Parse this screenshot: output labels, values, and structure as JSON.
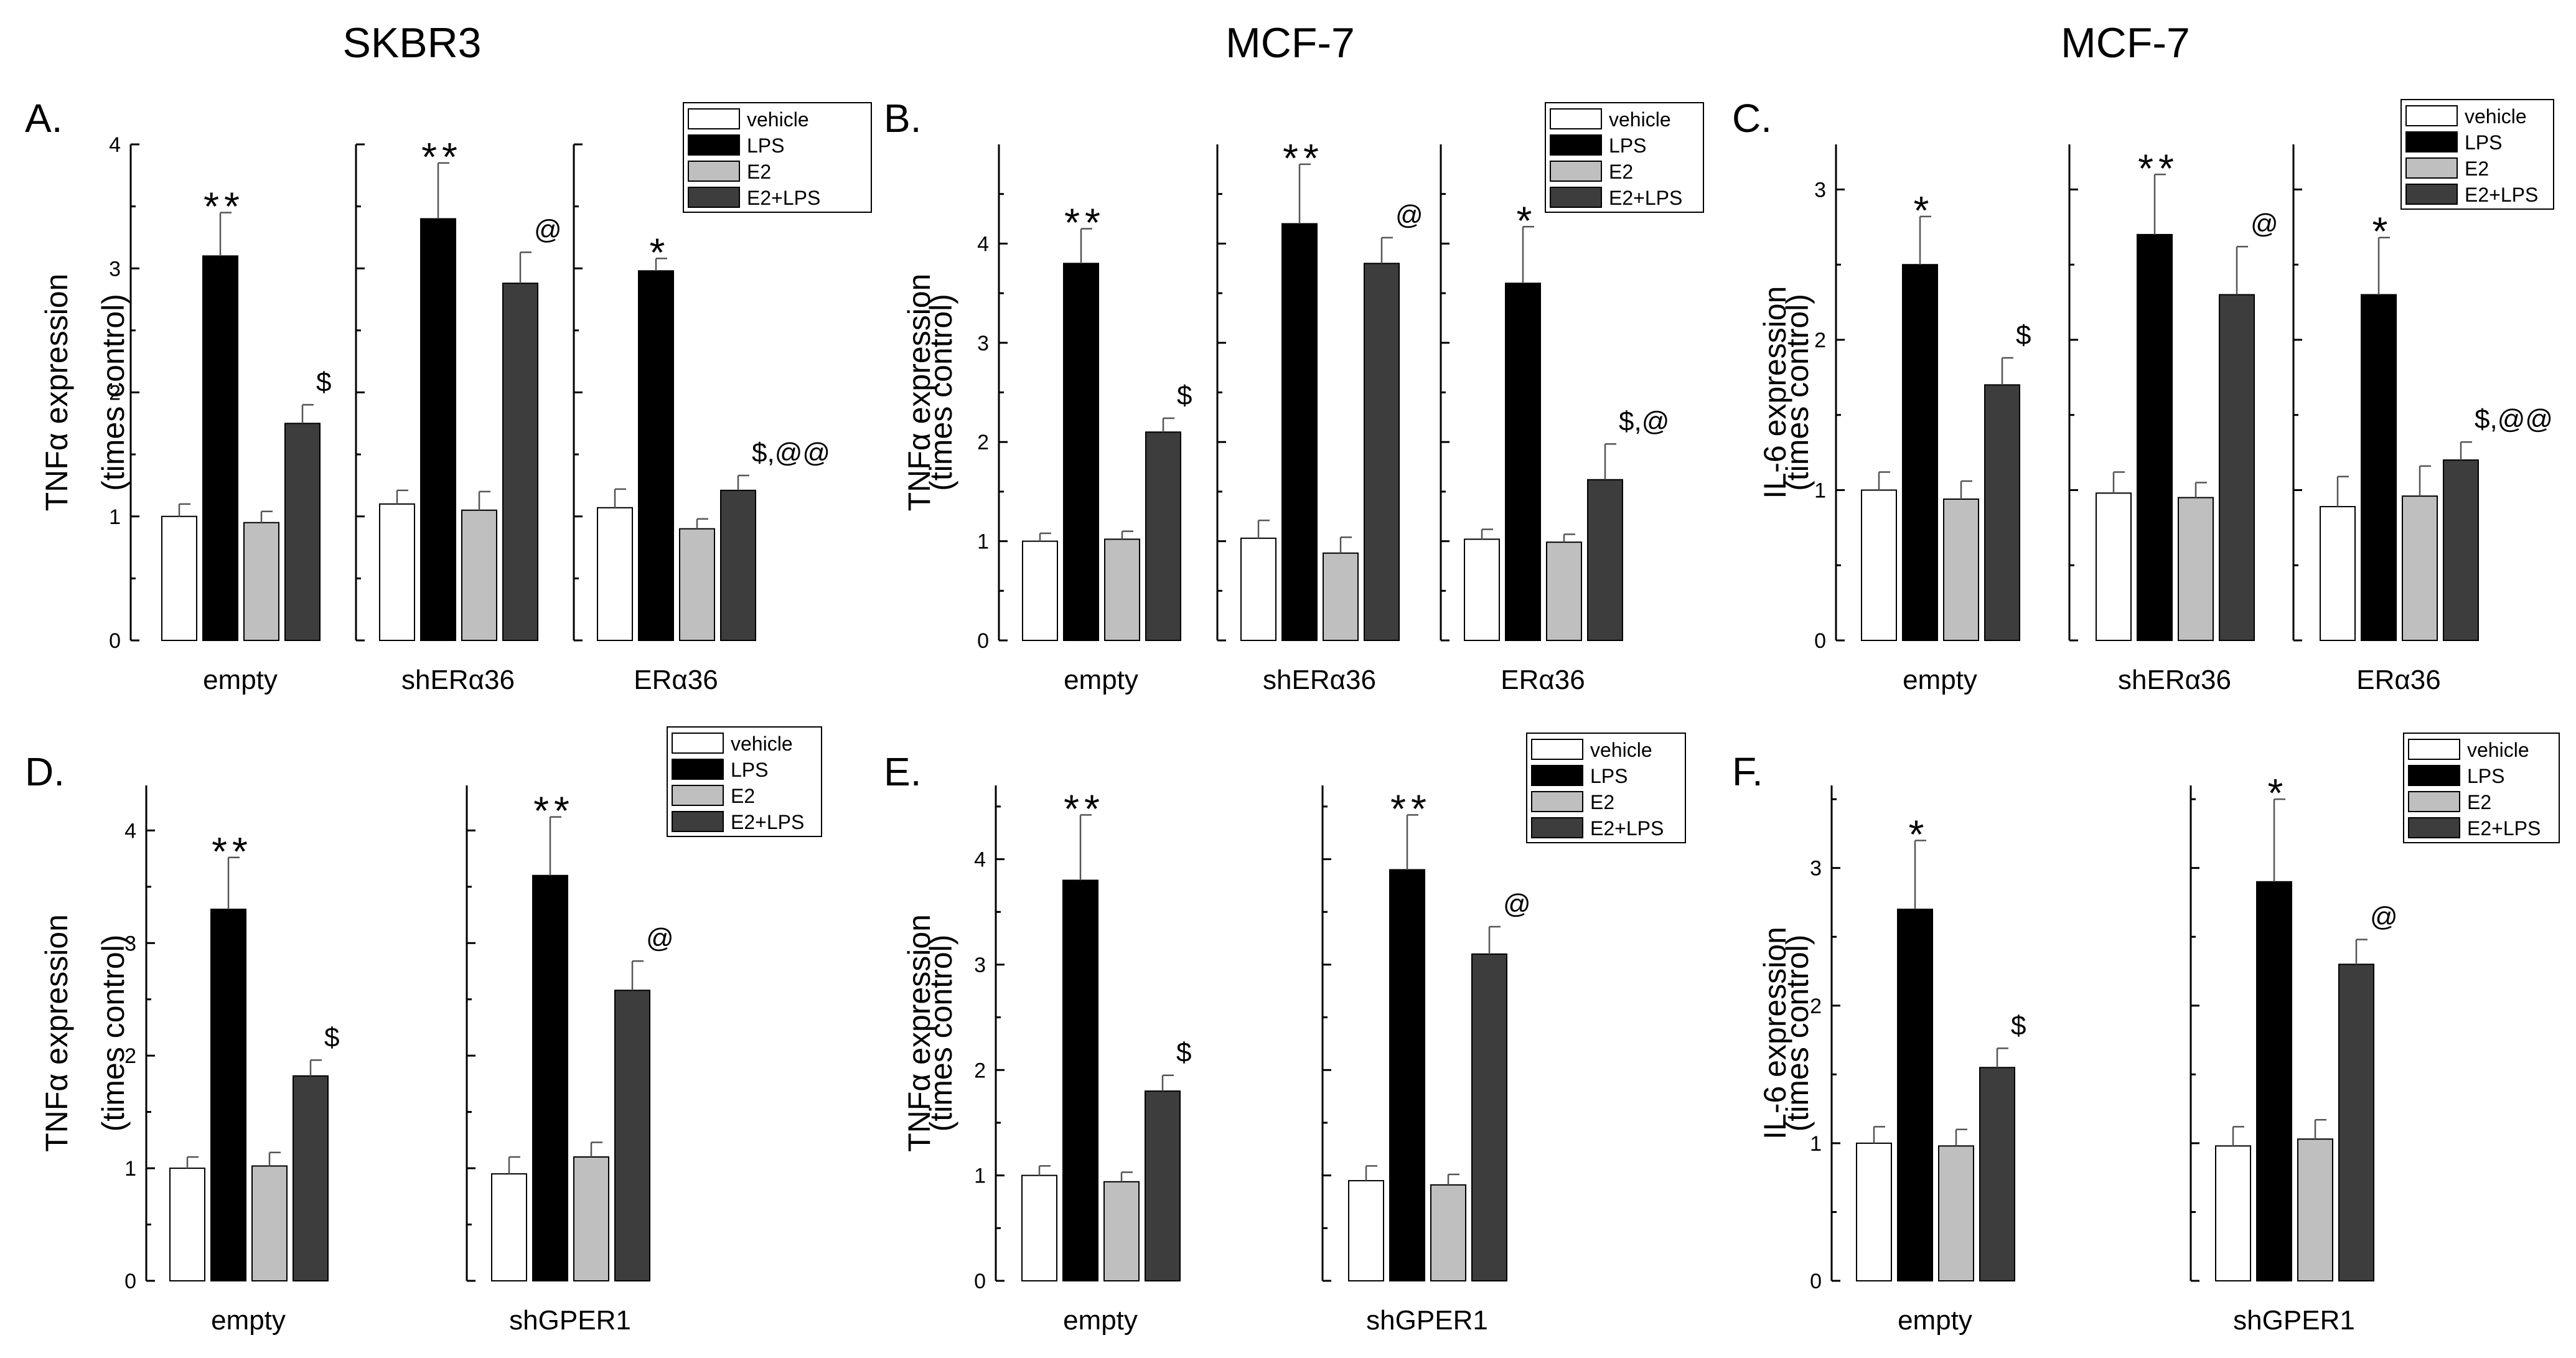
{
  "series_names": [
    "vehicle",
    "LPS",
    "E2",
    "E2+LPS"
  ],
  "colors": {
    "vehicle": "#ffffff",
    "LPS": "#000000",
    "E2": "#bfbfbf",
    "E2+LPS": "#3d3d3d",
    "axis": "#000000"
  },
  "column_titles": [
    "SKBR3",
    "MCF-7",
    "MCF-7"
  ],
  "chart_data": [
    {
      "type": "bar",
      "panel": "A.",
      "title": "SKBR3",
      "ylabel": "TNFα expression",
      "ylabel2": "(times control)",
      "ylim": [
        0,
        4
      ],
      "yticks": [
        0,
        1,
        2,
        3,
        4
      ],
      "legend": "top-right",
      "groups": [
        {
          "label": "empty",
          "values": [
            1.0,
            3.1,
            0.95,
            1.75
          ],
          "errors": [
            0.1,
            0.35,
            0.09,
            0.15
          ],
          "annotations": [
            "",
            "**",
            "",
            "$"
          ]
        },
        {
          "label": "shERα36",
          "values": [
            1.1,
            3.4,
            1.05,
            2.88
          ],
          "errors": [
            0.11,
            0.45,
            0.15,
            0.25
          ],
          "annotations": [
            "",
            "**",
            "",
            "@"
          ]
        },
        {
          "label": "ERα36",
          "values": [
            1.07,
            2.98,
            0.9,
            1.21
          ],
          "errors": [
            0.15,
            0.1,
            0.08,
            0.12
          ],
          "annotations": [
            "",
            "*",
            "",
            "$,@@"
          ]
        }
      ]
    },
    {
      "type": "bar",
      "panel": "B.",
      "title": "MCF-7",
      "ylabel": "TNFα expression",
      "ylabel2": "(times control)",
      "ylim": [
        0,
        5
      ],
      "yticks": [
        0,
        1,
        2,
        3,
        4
      ],
      "legend": "top-right",
      "groups": [
        {
          "label": "empty",
          "values": [
            1.0,
            3.8,
            1.02,
            2.1
          ],
          "errors": [
            0.08,
            0.35,
            0.08,
            0.14
          ],
          "annotations": [
            "",
            "**",
            "",
            "$"
          ]
        },
        {
          "label": "shERα36",
          "values": [
            1.03,
            4.2,
            0.88,
            3.8
          ],
          "errors": [
            0.18,
            0.6,
            0.16,
            0.26
          ],
          "annotations": [
            "",
            "**",
            "",
            "@"
          ]
        },
        {
          "label": "ERα36",
          "values": [
            1.02,
            3.6,
            0.99,
            1.62
          ],
          "errors": [
            0.1,
            0.57,
            0.08,
            0.36
          ],
          "annotations": [
            "",
            "*",
            "",
            "$,@"
          ]
        }
      ]
    },
    {
      "type": "bar",
      "panel": "C.",
      "title": "MCF-7",
      "ylabel": "IL-6 expression",
      "ylabel2": "(times control)",
      "ylim": [
        0,
        3.3
      ],
      "yticks": [
        0,
        1,
        2,
        3
      ],
      "legend": "top-right",
      "groups": [
        {
          "label": "empty",
          "values": [
            1.0,
            2.5,
            0.94,
            1.7
          ],
          "errors": [
            0.12,
            0.32,
            0.12,
            0.18
          ],
          "annotations": [
            "",
            "*",
            "",
            "$"
          ]
        },
        {
          "label": "shERα36",
          "values": [
            0.98,
            2.7,
            0.95,
            2.3
          ],
          "errors": [
            0.14,
            0.4,
            0.1,
            0.32
          ],
          "annotations": [
            "",
            "**",
            "",
            "@"
          ]
        },
        {
          "label": "ERα36",
          "values": [
            0.89,
            2.3,
            0.96,
            1.2
          ],
          "errors": [
            0.2,
            0.38,
            0.2,
            0.12
          ],
          "annotations": [
            "",
            "*",
            "",
            "$,@@"
          ]
        }
      ]
    },
    {
      "type": "bar",
      "panel": "D.",
      "ylabel": "TNFα expression",
      "ylabel2": "(times control)",
      "ylim": [
        0,
        4.4
      ],
      "yticks": [
        0,
        1,
        2,
        3,
        4
      ],
      "legend": "top-right",
      "groups": [
        {
          "label": "empty",
          "values": [
            1.0,
            3.3,
            1.02,
            1.82
          ],
          "errors": [
            0.1,
            0.46,
            0.12,
            0.14
          ],
          "annotations": [
            "",
            "**",
            "",
            "$"
          ]
        },
        {
          "label": "shGPER1",
          "values": [
            0.95,
            3.6,
            1.1,
            2.58
          ],
          "errors": [
            0.15,
            0.52,
            0.13,
            0.26
          ],
          "annotations": [
            "",
            "**",
            "",
            "@"
          ]
        }
      ]
    },
    {
      "type": "bar",
      "panel": "E.",
      "ylabel": "TNFα expression",
      "ylabel2": "(times control)",
      "ylim": [
        0,
        4.7
      ],
      "yticks": [
        0,
        1,
        2,
        3,
        4
      ],
      "legend": "top-right",
      "groups": [
        {
          "label": "empty",
          "values": [
            1.0,
            3.8,
            0.94,
            1.8
          ],
          "errors": [
            0.09,
            0.62,
            0.09,
            0.15
          ],
          "annotations": [
            "",
            "**",
            "",
            "$"
          ]
        },
        {
          "label": "shGPER1",
          "values": [
            0.95,
            3.9,
            0.91,
            3.1
          ],
          "errors": [
            0.14,
            0.52,
            0.1,
            0.26
          ],
          "annotations": [
            "",
            "**",
            "",
            "@"
          ]
        }
      ]
    },
    {
      "type": "bar",
      "panel": "F.",
      "ylabel": "IL-6 expression",
      "ylabel2": "(times control)",
      "ylim": [
        0,
        3.6
      ],
      "yticks": [
        0,
        1,
        2,
        3
      ],
      "legend": "top-right",
      "groups": [
        {
          "label": "empty",
          "values": [
            1.0,
            2.7,
            0.98,
            1.55
          ],
          "errors": [
            0.12,
            0.5,
            0.12,
            0.14
          ],
          "annotations": [
            "",
            "*",
            "",
            "$"
          ]
        },
        {
          "label": "shGPER1",
          "values": [
            0.98,
            2.9,
            1.03,
            2.3
          ],
          "errors": [
            0.14,
            0.6,
            0.14,
            0.18
          ],
          "annotations": [
            "",
            "*",
            "",
            "@"
          ]
        }
      ]
    }
  ]
}
